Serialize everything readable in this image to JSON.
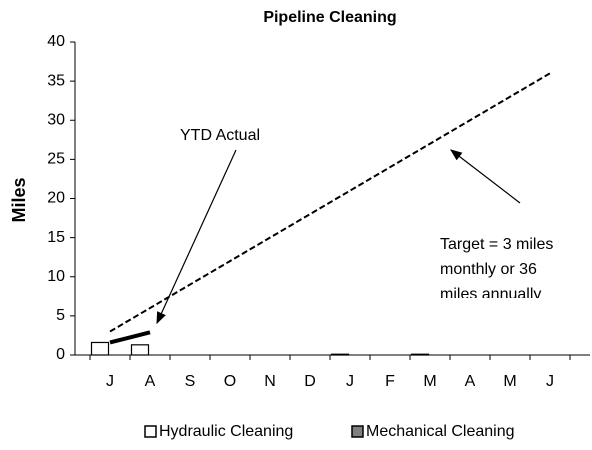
{
  "chart_data": {
    "type": "bar",
    "title": "Pipeline Cleaning",
    "y_label": "Miles",
    "categories": [
      "J",
      "A",
      "S",
      "O",
      "N",
      "D",
      "J",
      "F",
      "M",
      "A",
      "M",
      "J"
    ],
    "series": [
      {
        "name": "Hydraulic Cleaning",
        "color": "#ffffff",
        "values": [
          1.6,
          1.3,
          0,
          0,
          0,
          0,
          0.1,
          0,
          0.1,
          0,
          0,
          0
        ]
      },
      {
        "name": "Mechanical Cleaning",
        "color": "#808080",
        "values": [
          0,
          0,
          0,
          0,
          0,
          0,
          0,
          0,
          0,
          0,
          0,
          0
        ]
      }
    ],
    "line_series": [
      {
        "values": [
          3,
          6,
          9,
          12,
          15,
          18,
          21,
          24,
          27,
          30,
          33,
          36
        ],
        "color": "#000000",
        "dashed": true
      },
      {
        "values": [
          1.6,
          2.9,
          null,
          null,
          null,
          null,
          null,
          null,
          null,
          null,
          null,
          null
        ],
        "color": "#000000",
        "dashed": false
      }
    ],
    "ylim": [
      0,
      40
    ],
    "yticks": [
      0,
      5,
      10,
      15,
      20,
      25,
      30,
      35,
      40
    ],
    "annotations": [
      "YTD Actual",
      "Target = 3 miles",
      "monthly or 36",
      "miles annually"
    ],
    "legend": "bottom"
  }
}
